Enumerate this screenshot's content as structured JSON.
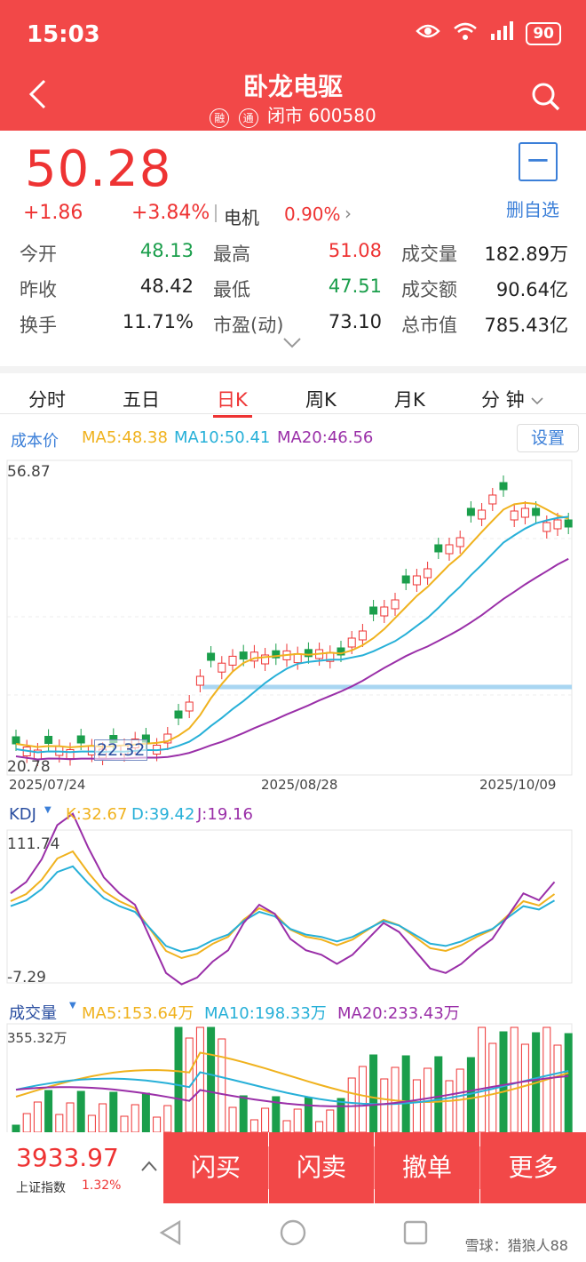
{
  "status": {
    "time": "15:03",
    "battery": "90"
  },
  "header": {
    "title": "卧龙电驱",
    "tag1": "融",
    "tag2": "通",
    "status_text": "闭市 600580"
  },
  "quote": {
    "price": "50.28",
    "change": "+1.86",
    "change_pct": "+3.84%",
    "sector": "电机",
    "sector_pct": "0.90%",
    "delete_label": "删自选"
  },
  "stats": [
    {
      "label": "今开",
      "value": "48.13",
      "color": "#1a9e4b"
    },
    {
      "label": "最高",
      "value": "51.08",
      "color": "#e33"
    },
    {
      "label": "成交量",
      "value": "182.89万",
      "color": "#222"
    },
    {
      "label": "昨收",
      "value": "48.42",
      "color": "#222"
    },
    {
      "label": "最低",
      "value": "47.51",
      "color": "#1a9e4b"
    },
    {
      "label": "成交额",
      "value": "90.64亿",
      "color": "#222"
    },
    {
      "label": "换手",
      "value": "11.71%",
      "color": "#222"
    },
    {
      "label": "市盈(动)",
      "value": "73.10",
      "color": "#222"
    },
    {
      "label": "总市值",
      "value": "785.43亿",
      "color": "#222"
    }
  ],
  "tabs": [
    "分时",
    "五日",
    "日K",
    "周K",
    "月K",
    "分 钟"
  ],
  "active_tab": "日K",
  "kline": {
    "cost_label": "成本价",
    "ma5": "MA5:48.38",
    "ma10": "MA10:50.41",
    "ma20": "MA20:46.56",
    "settings_label": "设置",
    "y_max": "56.87",
    "y_min": "20.78",
    "annot": "22.32",
    "dates": [
      "2025/07/24",
      "2025/08/28",
      "2025/10/09"
    ]
  },
  "kdj": {
    "name": "KDJ",
    "k": "K:32.67",
    "d": "D:39.42",
    "j": "J:19.16",
    "y_max": "111.74",
    "y_min": "-7.29"
  },
  "volume": {
    "name": "成交量",
    "ma5": "MA5:153.64万",
    "ma10": "MA10:198.33万",
    "ma20": "MA20:233.43万",
    "y_max": "355.32万"
  },
  "index": {
    "value": "3933.97",
    "name": "上证指数",
    "pct": "1.32%"
  },
  "actions": [
    "闪买",
    "闪卖",
    "撤单",
    "更多"
  ],
  "watermark": "雪球：猎狼人88",
  "colors": {
    "up": "#e33",
    "down": "#1a9e4b",
    "ma5": "#f0b21e",
    "ma10": "#27b0d8",
    "ma20": "#9a2fa8"
  }
}
